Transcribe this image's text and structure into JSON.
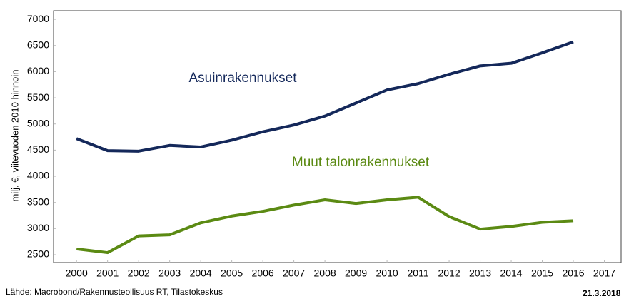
{
  "chart_data": {
    "type": "line",
    "y_label": "milj. €, viitevuoden 2010 hinnoin",
    "x": [
      2000,
      2001,
      2002,
      2003,
      2004,
      2005,
      2006,
      2007,
      2008,
      2009,
      2010,
      2011,
      2012,
      2013,
      2014,
      2015,
      2016
    ],
    "series": [
      {
        "name": "Asuinrakennukset",
        "color": "#14285a",
        "values": [
          4720,
          4490,
          4480,
          4590,
          4560,
          4690,
          4850,
          4980,
          5150,
          5400,
          5650,
          5770,
          5950,
          6110,
          6160,
          6360,
          6570
        ]
      },
      {
        "name": "Muut talonrakennukset",
        "color": "#5b8a13",
        "values": [
          2610,
          2540,
          2860,
          2880,
          3110,
          3240,
          3330,
          3450,
          3550,
          3480,
          3550,
          3600,
          3230,
          2990,
          3040,
          3120,
          3150
        ]
      }
    ],
    "xlim": [
      1999.26,
      2017.54
    ],
    "xticks": [
      2000,
      2001,
      2002,
      2003,
      2004,
      2005,
      2006,
      2007,
      2008,
      2009,
      2010,
      2011,
      2012,
      2013,
      2014,
      2015,
      2016,
      2017
    ],
    "ylim": [
      2350,
      7165
    ],
    "yticks": [
      2500,
      3000,
      3500,
      4000,
      4500,
      5000,
      5500,
      6000,
      6500,
      7000
    ],
    "grid": false,
    "source": "Lähde: Macrobond/Rakennusteollisuus RT, Tilastokeskus",
    "date": "21.3.2018"
  }
}
